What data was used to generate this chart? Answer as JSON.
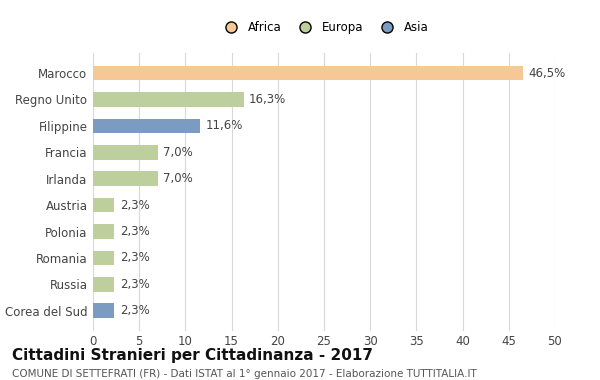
{
  "countries": [
    "Marocco",
    "Regno Unito",
    "Filippine",
    "Francia",
    "Irlanda",
    "Austria",
    "Polonia",
    "Romania",
    "Russia",
    "Corea del Sud"
  ],
  "values": [
    46.5,
    16.3,
    11.6,
    7.0,
    7.0,
    2.3,
    2.3,
    2.3,
    2.3,
    2.3
  ],
  "labels": [
    "46,5%",
    "16,3%",
    "11,6%",
    "7,0%",
    "7,0%",
    "2,3%",
    "2,3%",
    "2,3%",
    "2,3%",
    "2,3%"
  ],
  "continents": [
    "Africa",
    "Europa",
    "Asia",
    "Europa",
    "Europa",
    "Europa",
    "Europa",
    "Europa",
    "Europa",
    "Asia"
  ],
  "bar_colors": [
    "#F5C896",
    "#BECF9E",
    "#7B9CC0",
    "#BECF9E",
    "#BECF9E",
    "#BECF9E",
    "#BECF9E",
    "#BECF9E",
    "#BECF9E",
    "#7B9CC0"
  ],
  "xlim": [
    0,
    50
  ],
  "xticks": [
    0,
    5,
    10,
    15,
    20,
    25,
    30,
    35,
    40,
    45,
    50
  ],
  "title": "Cittadini Stranieri per Cittadinanza - 2017",
  "subtitle": "COMUNE DI SETTEFRATI (FR) - Dati ISTAT al 1° gennaio 2017 - Elaborazione TUTTITALIA.IT",
  "legend_labels": [
    "Africa",
    "Europa",
    "Asia"
  ],
  "legend_colors": [
    "#F5C896",
    "#BECF9E",
    "#7B9CC0"
  ],
  "background_color": "#ffffff",
  "grid_color": "#d8d8d8",
  "bar_height": 0.55,
  "label_fontsize": 8.5,
  "tick_fontsize": 8.5,
  "title_fontsize": 11,
  "subtitle_fontsize": 7.5
}
